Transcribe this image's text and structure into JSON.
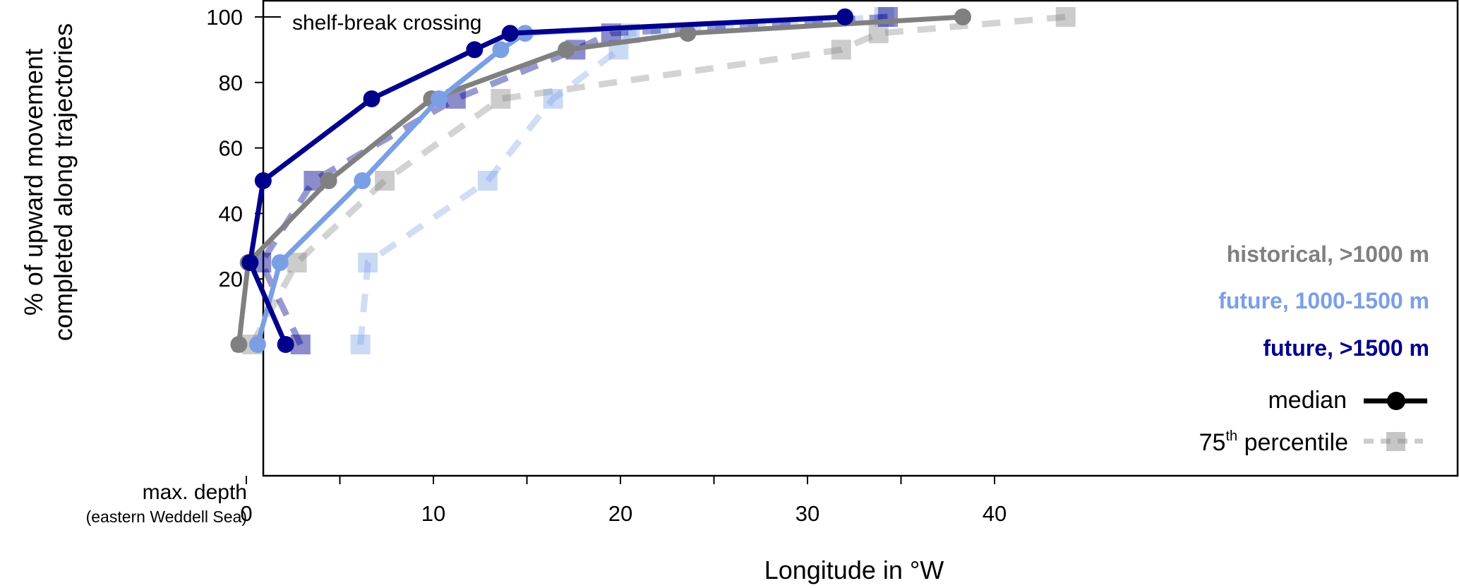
{
  "chart_data": {
    "type": "line",
    "title": "",
    "xlabel": "Longitude in °W",
    "ylabel_lines": [
      "% of upward movement",
      "completed along trajectories"
    ],
    "xlim": [
      -2.5,
      43.5
    ],
    "ylim": [
      -5,
      105
    ],
    "x_ticks": [
      0,
      10,
      20,
      30,
      40
    ],
    "x_minor_ticks": [
      5,
      15,
      25,
      35
    ],
    "y_ticks": [
      0,
      20,
      40,
      60,
      80,
      100
    ],
    "grid": false,
    "annotations": {
      "top": "shelf-break crossing",
      "bottom_main": "max. depth",
      "bottom_sub": "(eastern Weddell Sea)"
    },
    "legend": {
      "placement": "right",
      "style_median": "median",
      "style_p75_prefix": "75",
      "style_p75_sup": "th",
      "style_p75_suffix": " percentile"
    },
    "series": [
      {
        "name": "historical, >1000 m",
        "color": "#808080",
        "median": [
          [
            -0.4,
            0
          ],
          [
            0.1,
            25
          ],
          [
            4.4,
            50
          ],
          [
            9.9,
            75
          ],
          [
            17.1,
            90
          ],
          [
            23.6,
            95
          ],
          [
            38.3,
            100
          ]
        ],
        "p75": [
          [
            0.3,
            0
          ],
          [
            2.7,
            25
          ],
          [
            7.4,
            50
          ],
          [
            13.6,
            75
          ],
          [
            31.8,
            90
          ],
          [
            33.8,
            95
          ],
          [
            43.8,
            100
          ]
        ]
      },
      {
        "name": "future, 1000-1500 m",
        "color": "#7b9fe4",
        "median": [
          [
            0.6,
            0
          ],
          [
            1.8,
            25
          ],
          [
            6.2,
            50
          ],
          [
            10.3,
            75
          ],
          [
            13.6,
            90
          ],
          [
            14.9,
            95
          ],
          [
            32.0,
            100
          ]
        ],
        "p75": [
          [
            6.1,
            0
          ],
          [
            6.5,
            25
          ],
          [
            12.9,
            50
          ],
          [
            16.4,
            75
          ],
          [
            19.9,
            90
          ],
          [
            20.5,
            95
          ],
          [
            34.1,
            100
          ]
        ]
      },
      {
        "name": "future, >1500 m",
        "color": "#00008b",
        "median": [
          [
            2.1,
            0
          ],
          [
            0.2,
            25
          ],
          [
            0.9,
            50
          ],
          [
            6.7,
            75
          ],
          [
            12.2,
            90
          ],
          [
            14.1,
            95
          ],
          [
            32.0,
            100
          ]
        ],
        "p75": [
          [
            2.9,
            0
          ],
          [
            0.8,
            25
          ],
          [
            3.6,
            50
          ],
          [
            11.2,
            75
          ],
          [
            17.6,
            90
          ],
          [
            19.5,
            95
          ],
          [
            34.3,
            100
          ]
        ]
      }
    ]
  }
}
